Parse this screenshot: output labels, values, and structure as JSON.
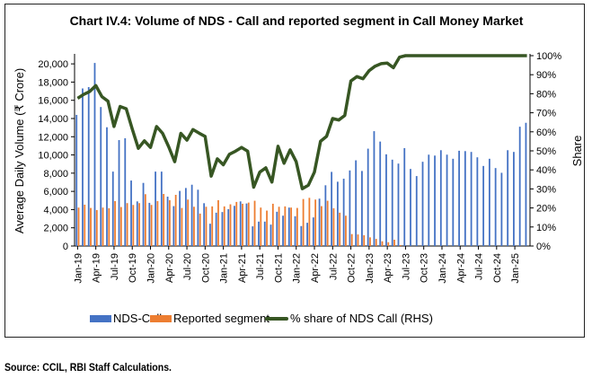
{
  "chart_data": {
    "type": "bar",
    "title": "Chart IV.4: Volume of NDS - Call and reported segment in Call Money Market",
    "ylabel": "Average Daily Volume (₹ Crore)",
    "y2label": "Share",
    "ylim": [
      0,
      20900
    ],
    "y2lim": [
      0,
      100
    ],
    "yticks": [
      "0",
      "2,000",
      "4,000",
      "6,000",
      "8,000",
      "10,000",
      "12,000",
      "14,000",
      "16,000",
      "18,000",
      "20,000"
    ],
    "y2ticks": [
      "0%",
      "10%",
      "20%",
      "30%",
      "40%",
      "50%",
      "60%",
      "70%",
      "80%",
      "90%",
      "100%"
    ],
    "xtick_labels": [
      "Jan-19",
      "Apr-19",
      "Jul-19",
      "Oct-19",
      "Jan-20",
      "Apr-20",
      "Jul-20",
      "Oct-20",
      "Jan-21",
      "Apr-21",
      "Jul-21",
      "Oct-21",
      "Jan-22",
      "Apr-22",
      "Jul-22",
      "Oct-22",
      "Jan-23",
      "Apr-23",
      "Jul-23",
      "Oct-23",
      "Jan-24",
      "Apr-24",
      "Jul-24",
      "Oct-24",
      "Jan-25"
    ],
    "grid": false,
    "legend_placement": "bottom",
    "categories_start": "Jan-19",
    "categories_end": "Mar-25",
    "series": [
      {
        "name": "NDS-Call",
        "type": "bar",
        "axis": "left",
        "color": "#4472C4",
        "values": [
          14400,
          17300,
          17450,
          20100,
          15260,
          13040,
          8170,
          11630,
          11830,
          7190,
          4900,
          6930,
          4740,
          8170,
          8170,
          5420,
          4380,
          6050,
          6370,
          6730,
          6180,
          4700,
          2450,
          3660,
          3730,
          4050,
          4410,
          4900,
          4670,
          2160,
          2680,
          2680,
          2350,
          3760,
          3330,
          4220,
          3270,
          2190,
          2550,
          3140,
          5200,
          6670,
          8140,
          7060,
          7390,
          8300,
          9410,
          8240,
          10690,
          12610,
          11470,
          10070,
          9480,
          9050,
          10750,
          8460,
          7680,
          9250,
          10030,
          9930,
          10520,
          10030,
          9580,
          10460,
          10420,
          10330,
          9740,
          8790,
          9580,
          8560,
          8040,
          10520,
          10330,
          13100,
          13530
        ]
      },
      {
        "name": "Reported segment",
        "type": "bar",
        "axis": "left",
        "color": "#ED7D31",
        "values": [
          4220,
          4540,
          4180,
          3950,
          4220,
          4150,
          4930,
          4280,
          4710,
          4510,
          4710,
          5690,
          4510,
          4930,
          5720,
          5030,
          5620,
          4180,
          5100,
          4310,
          3560,
          4310,
          4350,
          5030,
          4350,
          4580,
          4840,
          4640,
          4770,
          4970,
          4220,
          3890,
          4640,
          4310,
          4350,
          4220,
          4180,
          5160,
          5290,
          5100,
          4380,
          4970,
          4150,
          3660,
          3330,
          1310,
          1270,
          1180,
          950,
          780,
          520,
          420,
          690,
          100,
          0,
          0,
          0,
          0,
          0,
          0,
          0,
          0,
          0,
          0,
          0,
          0,
          0,
          0,
          0,
          0,
          0,
          0,
          0,
          0,
          0
        ]
      },
      {
        "name": "% share of NDS Call (RHS)",
        "type": "line",
        "axis": "right",
        "color": "#375623",
        "values": [
          77.6,
          79.6,
          81.2,
          84.3,
          78.5,
          76.1,
          62.8,
          73.3,
          72.1,
          61.5,
          51.3,
          55.3,
          51.8,
          62.8,
          59.2,
          52.1,
          44.3,
          59.2,
          55.6,
          61.2,
          59.3,
          57.6,
          36.7,
          45.8,
          42.7,
          48.2,
          49.8,
          51.8,
          49.8,
          30.9,
          38.8,
          41.1,
          33.6,
          52.4,
          43.5,
          50.5,
          44.3,
          30.1,
          32.0,
          38.8,
          55.0,
          57.6,
          67.0,
          66.2,
          68.6,
          86.7,
          89.0,
          87.9,
          92.1,
          94.5,
          95.8,
          96.1,
          93.7,
          99.2,
          100,
          100,
          100,
          100,
          100,
          100,
          100,
          100,
          100,
          100,
          100,
          100,
          100,
          100,
          100,
          100,
          100,
          100,
          100,
          100,
          100
        ]
      }
    ]
  },
  "source": "Source: CCIL, RBI Staff Calculations."
}
